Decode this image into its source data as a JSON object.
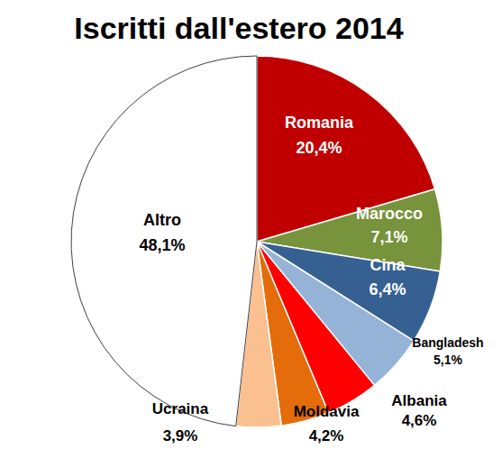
{
  "chart_data": {
    "type": "pie",
    "title": "Iscritti dall'estero 2014",
    "categories": [
      "Romania",
      "Marocco",
      "Cina",
      "Bangladesh",
      "Albania",
      "Moldavia",
      "Ucraina",
      "Altro"
    ],
    "values": [
      20.4,
      7.1,
      6.4,
      5.1,
      4.6,
      4.2,
      3.9,
      48.1
    ],
    "value_labels": [
      "20,4%",
      "7,1%",
      "6,4%",
      "5,1%",
      "4,6%",
      "4,2%",
      "3,9%",
      "48,1%"
    ],
    "colors": [
      "#C00000",
      "#77933C",
      "#376092",
      "#95B3D7",
      "#FF0000",
      "#E46C0A",
      "#FAC090",
      "#FFFFFF"
    ],
    "data_labels": true
  }
}
